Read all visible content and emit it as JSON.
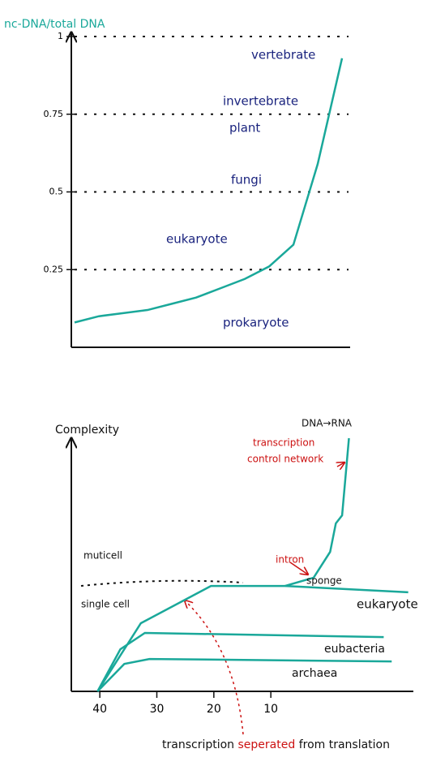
{
  "chart_data": [
    {
      "type": "line",
      "ylabel": "nc-DNA/total DNA",
      "categories": [
        null,
        null,
        null,
        null,
        null,
        null,
        null,
        null,
        null,
        null,
        null,
        null
      ],
      "series": [
        {
          "name": null,
          "color": "#1aa89a",
          "values": [
            0.08,
            0.1,
            0.11,
            0.12,
            0.14,
            0.16,
            0.19,
            0.22,
            0.26,
            0.33,
            0.59,
            0.93
          ]
        }
      ],
      "ylim": [
        0,
        1
      ],
      "yticks": [
        0.25,
        0.5,
        0.75,
        1
      ],
      "grid": true,
      "grid_style": "dotted",
      "annotations": [
        {
          "text": "vertebrate",
          "color": "#1a237e"
        },
        {
          "text": "invertebrate",
          "color": "#1a237e"
        },
        {
          "text": "plant",
          "color": "#1a237e"
        },
        {
          "text": "fungi",
          "color": "#1a237e"
        },
        {
          "text": "eukaryote",
          "color": "#1a237e"
        },
        {
          "text": "prokaryote",
          "color": "#1a237e"
        }
      ]
    },
    {
      "type": "line",
      "ylabel": "Complexity",
      "xlim": [
        45,
        -15
      ],
      "xticks": [
        40,
        30,
        20,
        10
      ],
      "ylim": [
        0,
        105
      ],
      "series": [
        {
          "name": "eukaryote",
          "color": "#1aa89a",
          "x": [
            40.4,
            32.8,
            20.5,
            7.5,
            -14.1
          ],
          "values": [
            0,
            28,
            43.3,
            43.3,
            40.7
          ]
        },
        {
          "name": "DNA→RNA",
          "color": "#1aa89a",
          "x": [
            7.5,
            2.5,
            -0.4,
            -1.4,
            -2.5,
            -3.7
          ],
          "values": [
            43.3,
            46.7,
            57.3,
            69,
            72.3,
            104
          ]
        },
        {
          "name": "eubacteria",
          "color": "#1aa89a",
          "x": [
            40.4,
            36.4,
            32.1,
            -9.8
          ],
          "values": [
            0,
            17.3,
            24,
            22.3
          ]
        },
        {
          "name": "archaea",
          "color": "#1aa89a",
          "x": [
            40.4,
            35.7,
            31.3,
            -11.2
          ],
          "values": [
            0,
            11.3,
            13.3,
            12.3
          ]
        }
      ],
      "annotations": [
        {
          "text": "muticell",
          "color": "#111111"
        },
        {
          "text": "single cell",
          "color": "#111111"
        },
        {
          "text": "sponge",
          "color": "#111111"
        },
        {
          "text": "intron",
          "color": "#cc1111"
        },
        {
          "text": "transcription",
          "color": "#cc1111"
        },
        {
          "text": "control network",
          "color": "#cc1111"
        },
        {
          "text": "transcription",
          "color": "#111111"
        },
        {
          "text": "seperated",
          "color": "#cc1111"
        },
        {
          "text": "from translation",
          "color": "#111111"
        }
      ]
    }
  ]
}
